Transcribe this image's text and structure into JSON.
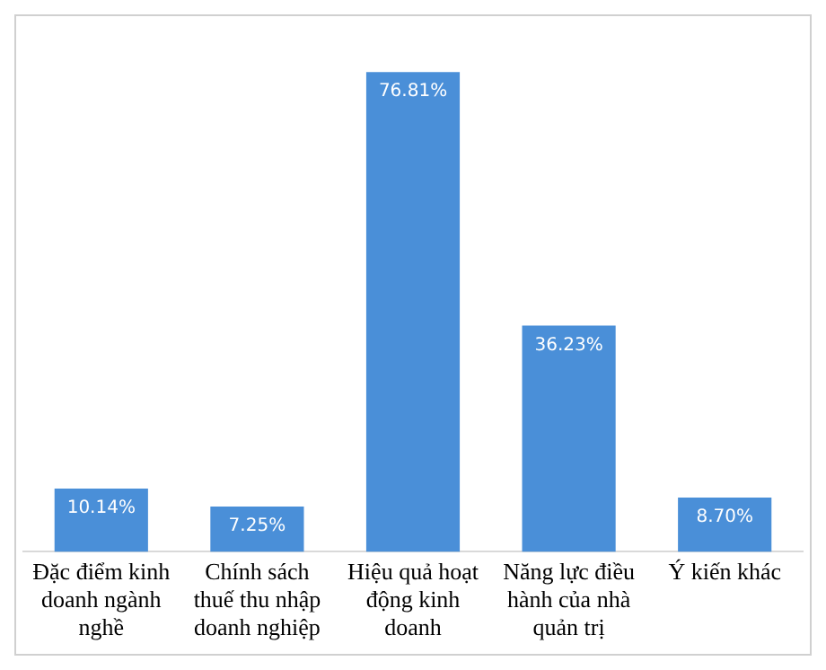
{
  "chart_data": {
    "type": "bar",
    "categories": [
      "Đặc điểm kinh doanh ngành nghề",
      "Chính sách thuế thu nhập doanh nghiệp",
      "Hiệu quả hoạt động kinh doanh",
      "Năng lực điều hành của nhà quản trị",
      "Ý kiến khác"
    ],
    "values": [
      10.14,
      7.25,
      76.81,
      36.23,
      8.7
    ],
    "value_labels": [
      "10.14%",
      "7.25%",
      "76.81%",
      "36.23%",
      "8.70%"
    ],
    "color": "#4a8fd8",
    "grid": false,
    "legend": false
  }
}
